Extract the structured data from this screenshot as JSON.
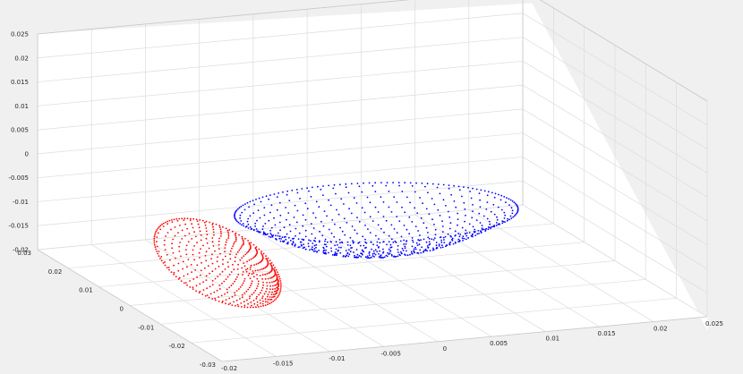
{
  "chart_data": {
    "type": "scatter",
    "projection": "3d",
    "grid": true,
    "background": "#f0f0f0",
    "axes_color": "#ffffff",
    "grid_color": "#dcdcdc",
    "xlim": [
      -0.02,
      0.025
    ],
    "ylim": [
      -0.03,
      0.03
    ],
    "zlim": [
      -0.02,
      0.025
    ],
    "x_ticks": [
      "-0.02",
      "-0.015",
      "-0.01",
      "-0.005",
      "0",
      "0.005",
      "0.01",
      "0.015",
      "0.02",
      "0.025"
    ],
    "y_ticks": [
      "-0.03",
      "-0.02",
      "-0.01",
      "0",
      "0.01",
      "0.02",
      "0.03"
    ],
    "z_ticks": [
      "-0.02",
      "-0.015",
      "-0.01",
      "-0.005",
      "0",
      "0.005",
      "0.01",
      "0.015",
      "0.02",
      "0.025"
    ],
    "series": [
      {
        "color": "#0000ff",
        "shape": "bowl",
        "center": [
          0.004,
          0.004,
          -0.0075
        ],
        "radius_x": 0.012,
        "radius_y": 0.014,
        "depth": 0.008,
        "rings": 18,
        "points_per_ring": 64,
        "rim_points": 150
      },
      {
        "color": "#ff0000",
        "shape": "tilted-bowl",
        "center": [
          -0.013,
          -0.004,
          -0.011
        ],
        "radius_x": 0.0045,
        "radius_y": 0.012,
        "depth": 0.006,
        "rings": 16,
        "points_per_ring": 50,
        "rim_points": 120
      }
    ]
  }
}
